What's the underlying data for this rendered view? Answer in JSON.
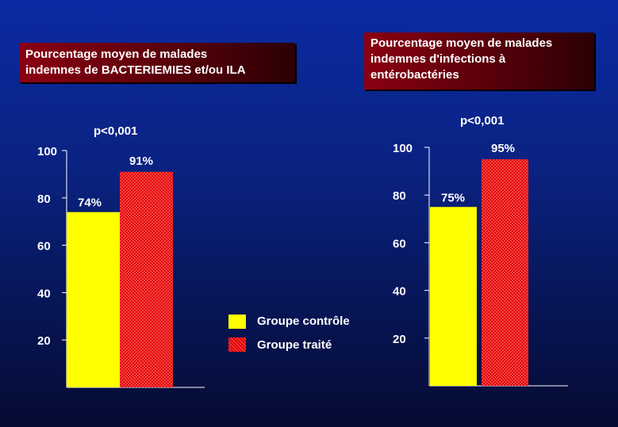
{
  "chart_data": [
    {
      "type": "bar",
      "title": "Pourcentage moyen de malades indemnes de BACTERIEMIES et/ou ILA",
      "annotation": "p<0,001",
      "categories": [
        "Groupe contrôle",
        "Groupe traité"
      ],
      "values": [
        74,
        91
      ],
      "data_labels": [
        "74%",
        "91%"
      ],
      "ylim": [
        0,
        100
      ],
      "yticks": [
        20,
        40,
        60,
        80,
        100
      ],
      "ytick_labels": [
        "20",
        "40",
        "60",
        "80",
        "100"
      ],
      "grid": false
    },
    {
      "type": "bar",
      "title": "Pourcentage moyen de malades indemnes d'infections à entérobactéries",
      "annotation": "p<0,001",
      "categories": [
        "Groupe contrôle",
        "Groupe traité"
      ],
      "values": [
        75,
        95
      ],
      "data_labels": [
        "75%",
        "95%"
      ],
      "ylim": [
        0,
        100
      ],
      "yticks": [
        20,
        40,
        60,
        80,
        100
      ],
      "ytick_labels": [
        "20",
        "40",
        "60",
        "80",
        "100"
      ],
      "grid": false
    }
  ],
  "legend": {
    "placement": "center-bottom",
    "items": [
      {
        "label": "Groupe contrôle",
        "color": "#ffff00",
        "pattern": "solid"
      },
      {
        "label": "Groupe traité",
        "color": "#e00000",
        "pattern": "hatched"
      }
    ]
  },
  "title_lines": {
    "left": [
      "Pourcentage moyen de malades",
      "indemnes de BACTERIEMIES et/ou ILA"
    ],
    "right": [
      "Pourcentage moyen de malades",
      "indemnes d'infections à",
      "entérobactéries"
    ]
  }
}
